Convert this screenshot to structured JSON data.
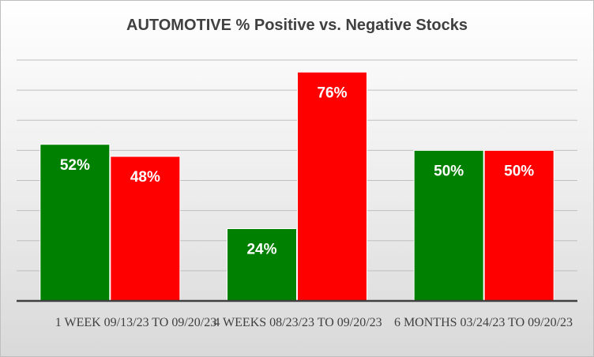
{
  "chart_data": {
    "type": "bar",
    "title": "AUTOMOTIVE % Positive vs. Negative Stocks",
    "categories": [
      "1 WEEK 09/13/23 TO 09/20/23",
      "4 WEEKS 08/23/23 TO 09/20/23",
      "6 MONTHS 03/24/23 TO 09/20/23"
    ],
    "series": [
      {
        "values": [
          52,
          24,
          50
        ],
        "labels": [
          "52%",
          "24%",
          "50%"
        ],
        "color": "#008000"
      },
      {
        "values": [
          48,
          76,
          50
        ],
        "labels": [
          "48%",
          "76%",
          "50%"
        ],
        "color": "#ff0000"
      }
    ],
    "ylim": [
      0,
      80
    ],
    "grid": true,
    "legend": "none"
  }
}
